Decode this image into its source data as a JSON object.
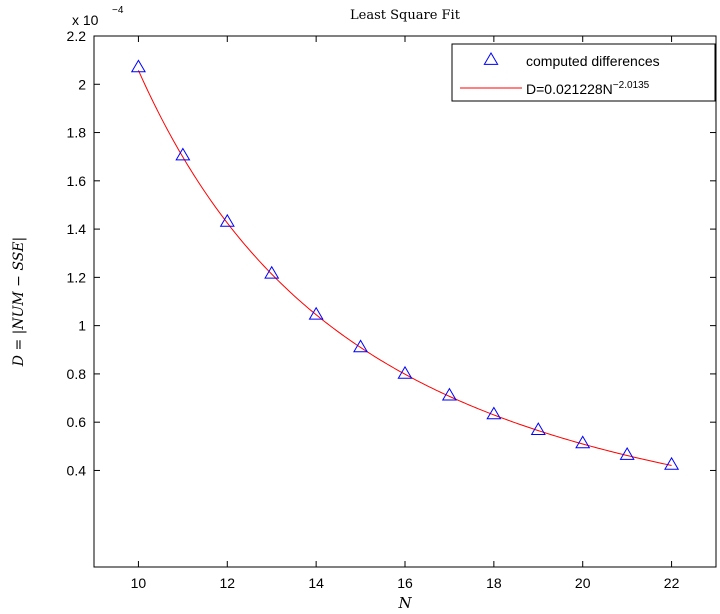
{
  "chart_data": {
    "type": "line",
    "title": "Least Square Fit",
    "xlabel": "N",
    "ylabel": "D = |NUM − SSE|",
    "y_multiplier": {
      "base": "x 10",
      "exponent": "−4"
    },
    "xlim": [
      9,
      23
    ],
    "ylim": [
      0,
      2.2
    ],
    "x_ticks": [
      10,
      12,
      14,
      16,
      18,
      20,
      22
    ],
    "y_ticks": [
      0.4,
      0.6,
      0.8,
      1,
      1.2,
      1.4,
      1.6,
      1.8,
      2,
      2.2
    ],
    "grid": false,
    "legend_position": "top-right",
    "series": [
      {
        "name": "computed differences",
        "marker": "triangle",
        "color": "#0000ff",
        "x": [
          10,
          11,
          12,
          13,
          14,
          15,
          16,
          17,
          18,
          19,
          20,
          21,
          22
        ],
        "values": [
          2.07,
          1.705,
          1.43,
          1.215,
          1.045,
          0.91,
          0.8,
          0.71,
          0.632,
          0.567,
          0.512,
          0.464,
          0.423
        ]
      },
      {
        "name_base": "D=0.021228N",
        "name_exponent": "−2.0135",
        "style": "line",
        "color": "#ff0000",
        "coefficient": 0.021228,
        "exponent": -2.0135,
        "x_range": [
          10,
          22
        ]
      }
    ]
  }
}
